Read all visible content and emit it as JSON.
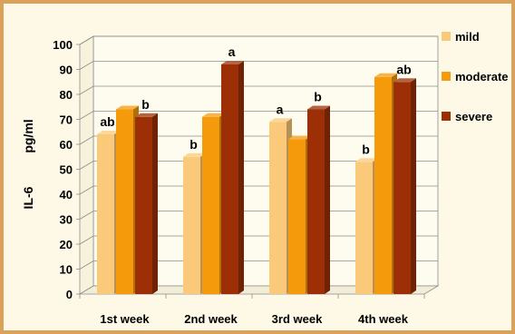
{
  "chart_data": {
    "type": "bar",
    "title": "",
    "ylabel_left": "IL-6",
    "ylabel_right": "pg/ml",
    "xlabel": "",
    "categories": [
      "1st week",
      "2nd week",
      "3rd week",
      "4th week"
    ],
    "ylim": [
      0,
      100
    ],
    "yticks": [
      0,
      10,
      20,
      30,
      40,
      50,
      60,
      70,
      80,
      90,
      100
    ],
    "grid": true,
    "legend_position": "right",
    "series": [
      {
        "name": "mild",
        "color": "#fbc97a",
        "values": [
          64,
          55,
          69,
          53
        ],
        "labels": [
          "ab",
          "b",
          "a",
          "b"
        ]
      },
      {
        "name": "moderate",
        "color": "#f59b0b",
        "values": [
          74,
          71,
          62,
          87
        ],
        "labels": [
          "",
          "",
          "",
          ""
        ]
      },
      {
        "name": "severe",
        "color": "#9c2f06",
        "values": [
          71,
          92,
          74,
          85
        ],
        "labels": [
          "b",
          "a",
          "b",
          "ab"
        ]
      }
    ]
  }
}
